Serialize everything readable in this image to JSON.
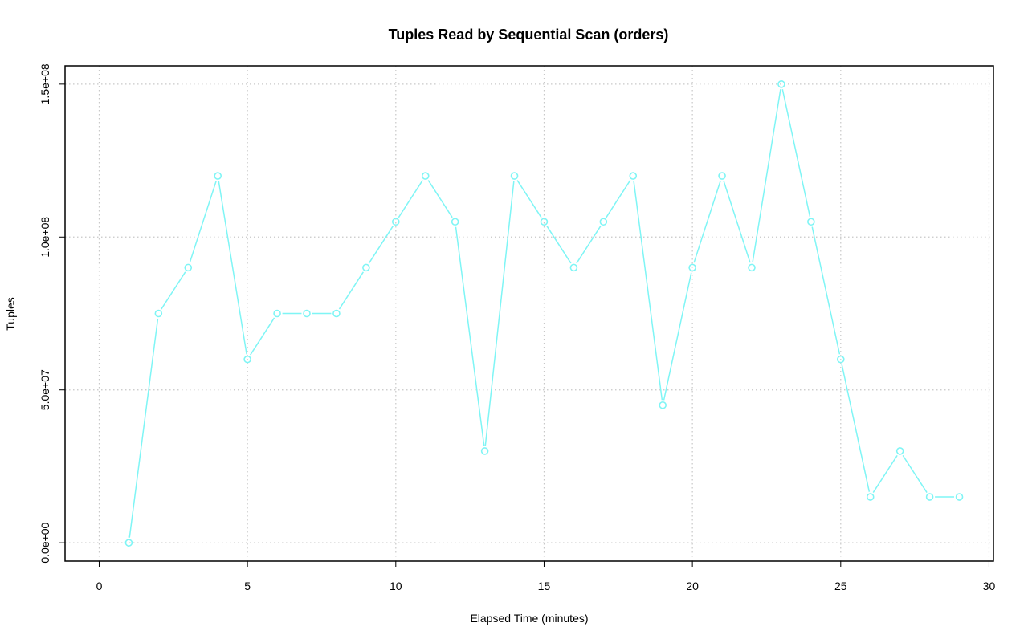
{
  "chart_data": {
    "type": "line",
    "title": "Tuples Read by Sequential Scan (orders)",
    "xlabel": "Elapsed Time (minutes)",
    "ylabel": "Tuples",
    "xlim": [
      -1.15,
      30.15
    ],
    "ylim": [
      -6000000,
      156000000
    ],
    "x_ticks": [
      0,
      5,
      10,
      15,
      20,
      25,
      30
    ],
    "x_tick_labels": [
      "0",
      "5",
      "10",
      "15",
      "20",
      "25",
      "30"
    ],
    "y_ticks": [
      0,
      50000000,
      100000000,
      150000000
    ],
    "y_tick_labels": [
      "0.0e+00",
      "5.0e+07",
      "1.0e+08",
      "1.5e+08"
    ],
    "grid": true,
    "series": [
      {
        "color": "#7ff5f5",
        "marker": "open-circle",
        "x": [
          1,
          2,
          3,
          4,
          5,
          6,
          7,
          8,
          9,
          10,
          11,
          12,
          13,
          14,
          15,
          16,
          17,
          18,
          19,
          20,
          21,
          22,
          23,
          24,
          25,
          26,
          27,
          28,
          29
        ],
        "values": [
          0,
          75000000,
          90000000,
          120000000,
          60000000,
          75000000,
          75000000,
          75000000,
          90000000,
          105000000,
          120000000,
          105000000,
          30000000,
          120000000,
          105000000,
          90000000,
          105000000,
          120000000,
          45000000,
          90000000,
          120000000,
          90000000,
          150000000,
          105000000,
          60000000,
          15000000,
          30000000,
          15000000,
          15000000
        ]
      }
    ]
  }
}
